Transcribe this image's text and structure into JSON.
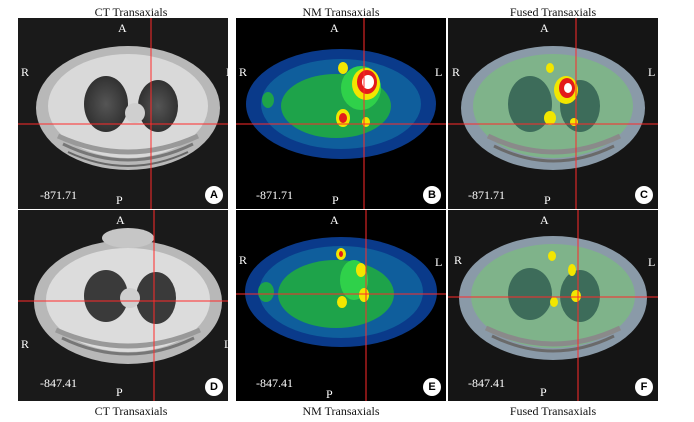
{
  "top_titles": [
    "CT Transaxials",
    "NM Transaxials",
    "Fused Transaxials"
  ],
  "bottom_titles": [
    "CT Transaxials",
    "NM Transaxials",
    "Fused Transaxials"
  ],
  "orientation": {
    "anterior": "A",
    "posterior": "P",
    "right": "R",
    "left": "L"
  },
  "panels": [
    {
      "badge": "A",
      "value": "-871.71",
      "type": "ct"
    },
    {
      "badge": "B",
      "value": "-871.71",
      "type": "nm"
    },
    {
      "badge": "C",
      "value": "-871.71",
      "type": "fused"
    },
    {
      "badge": "D",
      "value": "-847.41",
      "type": "ct"
    },
    {
      "badge": "E",
      "value": "-847.41",
      "type": "nm"
    },
    {
      "badge": "F",
      "value": "-847.41",
      "type": "fused"
    }
  ]
}
